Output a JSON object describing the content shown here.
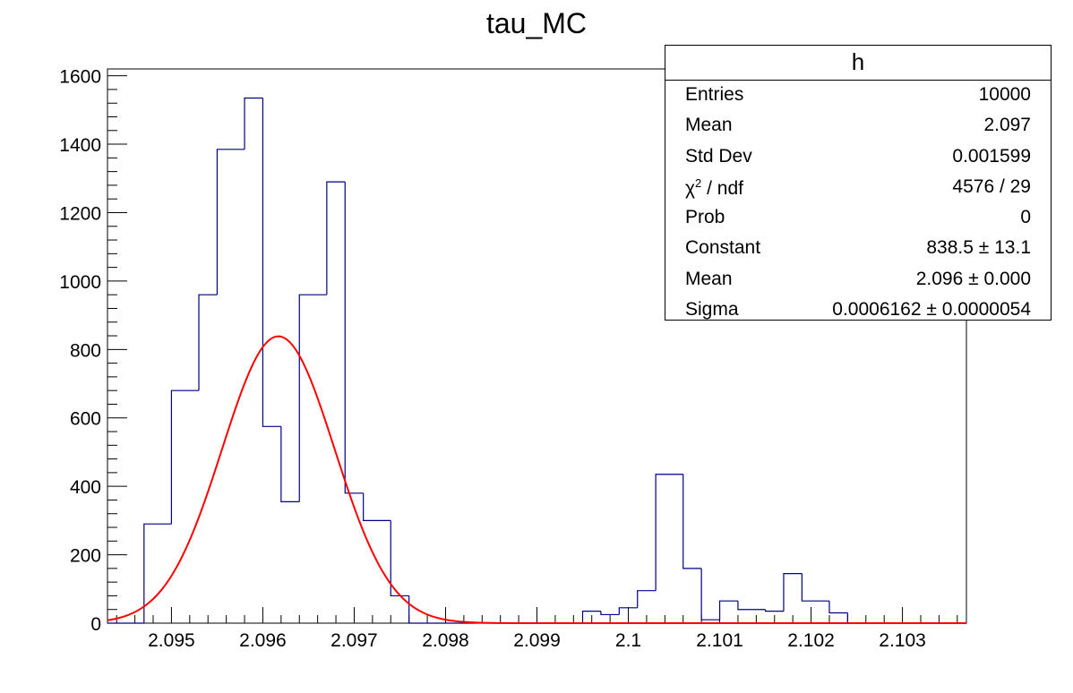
{
  "chart_data": {
    "type": "bar",
    "title": "tau_MC",
    "xlabel": "",
    "ylabel": "",
    "xlim": [
      2.0943,
      2.1037
    ],
    "ylim": [
      0,
      1620
    ],
    "x_ticks": [
      2.095,
      2.096,
      2.097,
      2.098,
      2.099,
      2.1,
      2.101,
      2.102,
      2.103
    ],
    "x_tick_labels": [
      "2.095",
      "2.096",
      "2.097",
      "2.098",
      "2.099",
      "2.1",
      "2.101",
      "2.102",
      "2.103"
    ],
    "y_ticks": [
      0,
      200,
      400,
      600,
      800,
      1000,
      1200,
      1400,
      1600
    ],
    "y_tick_labels": [
      "0",
      "200",
      "400",
      "600",
      "800",
      "1000",
      "1200",
      "1400",
      "1600"
    ],
    "histogram": {
      "bin_edges": [
        2.0943,
        2.0947,
        2.095,
        2.0953,
        2.0955,
        2.0958,
        2.096,
        2.0962,
        2.0964,
        2.0967,
        2.0969,
        2.0971,
        2.0974,
        2.0976,
        2.0995,
        2.0997,
        2.0999,
        2.1001,
        2.1003,
        2.1006,
        2.1008,
        2.101,
        2.1012,
        2.1015,
        2.1017,
        2.1019,
        2.1022,
        2.1024
      ],
      "values": [
        0,
        290,
        680,
        960,
        1385,
        1535,
        575,
        355,
        960,
        1290,
        380,
        300,
        80,
        0,
        35,
        25,
        45,
        95,
        435,
        160,
        10,
        65,
        40,
        35,
        145,
        65,
        30
      ],
      "color": "#000080"
    },
    "fit": {
      "name": "gaus",
      "constant": 838.5,
      "mean": 2.09617,
      "sigma": 0.0006162,
      "color": "#ff0000"
    },
    "stats_box": {
      "title": "h",
      "rows": [
        {
          "key": "Entries",
          "value": "10000"
        },
        {
          "key": "Mean",
          "value": "2.097"
        },
        {
          "key": "Std Dev",
          "value": "0.001599"
        },
        {
          "key": "χ",
          "value": "4576 / 29"
        },
        {
          "key": "Prob",
          "value": "0"
        },
        {
          "key": "Constant",
          "value": "838.5 ± 13.1"
        },
        {
          "key": "Mean",
          "value": "2.096 ± 0.000"
        },
        {
          "key": "Sigma",
          "value": "0.0006162 ± 0.0000054"
        }
      ],
      "chi2_suffix": " / ndf"
    }
  }
}
